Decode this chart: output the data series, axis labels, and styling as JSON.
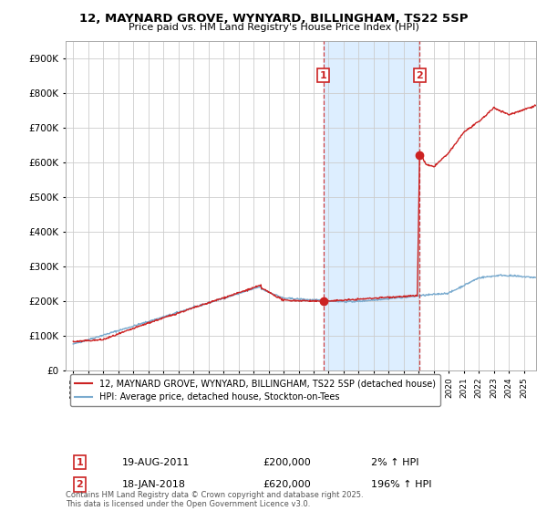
{
  "title1": "12, MAYNARD GROVE, WYNYARD, BILLINGHAM, TS22 5SP",
  "title2": "Price paid vs. HM Land Registry's House Price Index (HPI)",
  "background_color": "#ffffff",
  "plot_bg_color": "#ffffff",
  "grid_color": "#cccccc",
  "hpi_color": "#7aabcf",
  "price_color": "#cc2222",
  "shade_color": "#ddeeff",
  "sale1_date_num": 2011.64,
  "sale1_price": 200000,
  "sale1_label": "1",
  "sale2_date_num": 2018.05,
  "sale2_price": 620000,
  "sale2_label": "2",
  "xmin": 1994.5,
  "xmax": 2025.8,
  "ymin": 0,
  "ymax": 950000,
  "yticks": [
    0,
    100000,
    200000,
    300000,
    400000,
    500000,
    600000,
    700000,
    800000,
    900000
  ],
  "ytick_labels": [
    "£0",
    "£100K",
    "£200K",
    "£300K",
    "£400K",
    "£500K",
    "£600K",
    "£700K",
    "£800K",
    "£900K"
  ],
  "legend_label1": "12, MAYNARD GROVE, WYNYARD, BILLINGHAM, TS22 5SP (detached house)",
  "legend_label2": "HPI: Average price, detached house, Stockton-on-Tees",
  "annotation1_date": "19-AUG-2011",
  "annotation1_price": "£200,000",
  "annotation1_change": "2% ↑ HPI",
  "annotation2_date": "18-JAN-2018",
  "annotation2_price": "£620,000",
  "annotation2_change": "196% ↑ HPI",
  "footnote": "Contains HM Land Registry data © Crown copyright and database right 2025.\nThis data is licensed under the Open Government Licence v3.0."
}
